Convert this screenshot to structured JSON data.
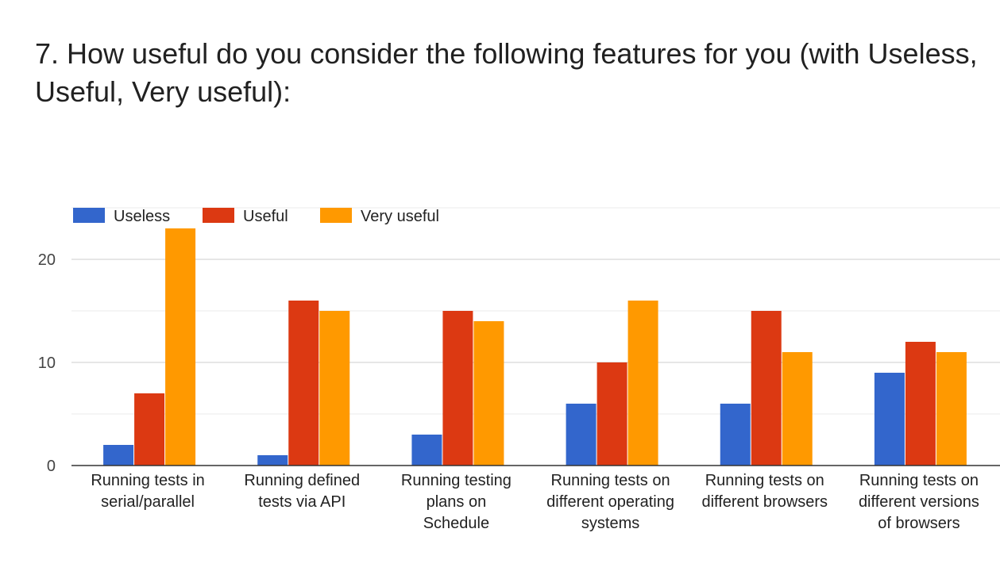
{
  "question": {
    "line1": "7. How useful do you consider the following features for you (with Useless,",
    "line2": "Useful, Very useful):"
  },
  "chart_data": {
    "type": "bar",
    "categories": [
      [
        "Running tests in",
        "serial/parallel"
      ],
      [
        "Running defined",
        "tests via API"
      ],
      [
        "Running testing",
        "plans on",
        "Schedule"
      ],
      [
        "Running tests on",
        "different operating",
        "systems"
      ],
      [
        "Running tests on",
        "different browsers"
      ],
      [
        "Running tests on",
        "different versions",
        "of browsers"
      ]
    ],
    "series": [
      {
        "name": "Useless",
        "color": "#3366cc",
        "values": [
          2,
          1,
          3,
          6,
          6,
          9
        ]
      },
      {
        "name": "Useful",
        "color": "#dc3912",
        "values": [
          7,
          16,
          15,
          10,
          15,
          12
        ]
      },
      {
        "name": "Very useful",
        "color": "#ff9900",
        "values": [
          23,
          15,
          14,
          16,
          11,
          11
        ]
      }
    ],
    "yticks": [
      0,
      10,
      20
    ],
    "ylim": [
      0,
      25
    ],
    "grid": true,
    "legend": "top-left"
  }
}
